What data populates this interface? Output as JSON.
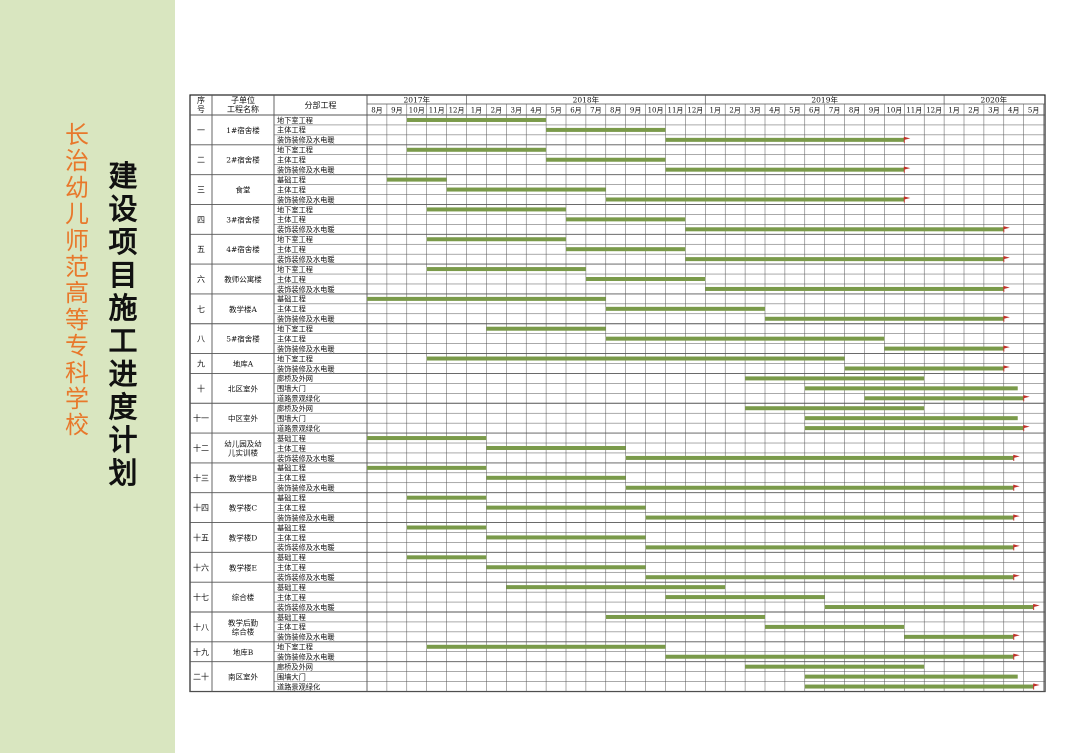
{
  "school_name": "长治幼儿师范高等专科学校",
  "page_title": "建设项目施工进度计划",
  "header": {
    "seq": "序号",
    "unit": "子单位工程名称",
    "sub": "分部工程"
  },
  "years": [
    {
      "label": "2017年",
      "start_month": 0,
      "months": 5
    },
    {
      "label": "2018年",
      "start_month": 5,
      "months": 12
    },
    {
      "label": "2019年",
      "start_month": 17,
      "months": 12
    },
    {
      "label": "2020年",
      "start_month": 29,
      "months": 5
    }
  ],
  "month_labels": [
    "8月",
    "9月",
    "10月",
    "11月",
    "12月",
    "1月",
    "2月",
    "3月",
    "4月",
    "5月",
    "6月",
    "7月",
    "8月",
    "9月",
    "10月",
    "11月",
    "12月",
    "1月",
    "2月",
    "3月",
    "4月",
    "5月",
    "6月",
    "7月",
    "8月",
    "9月",
    "10月",
    "11月",
    "12月",
    "1月",
    "2月",
    "3月",
    "4月",
    "5月"
  ],
  "projects": [
    {
      "seq": "一",
      "name": "1#宿舍楼",
      "tasks": [
        {
          "sub": "地下室工程",
          "start": 2.0,
          "end": 9.0,
          "flag": false
        },
        {
          "sub": "主体工程",
          "start": 9.0,
          "end": 15.0,
          "flag": false
        },
        {
          "sub": "装饰装修及水电暖",
          "start": 15.0,
          "end": 27.0,
          "flag": true
        }
      ]
    },
    {
      "seq": "二",
      "name": "2#宿舍楼",
      "tasks": [
        {
          "sub": "地下室工程",
          "start": 2.0,
          "end": 9.0,
          "flag": false
        },
        {
          "sub": "主体工程",
          "start": 9.0,
          "end": 15.0,
          "flag": false
        },
        {
          "sub": "装饰装修及水电暖",
          "start": 15.0,
          "end": 27.0,
          "flag": true
        }
      ]
    },
    {
      "seq": "三",
      "name": "食堂",
      "tasks": [
        {
          "sub": "基础工程",
          "start": 1.0,
          "end": 4.0,
          "flag": false
        },
        {
          "sub": "主体工程",
          "start": 4.0,
          "end": 12.0,
          "flag": false
        },
        {
          "sub": "装饰装修及水电暖",
          "start": 12.0,
          "end": 27.0,
          "flag": true
        }
      ]
    },
    {
      "seq": "四",
      "name": "3#宿舍楼",
      "tasks": [
        {
          "sub": "地下室工程",
          "start": 3.0,
          "end": 10.0,
          "flag": false
        },
        {
          "sub": "主体工程",
          "start": 10.0,
          "end": 16.0,
          "flag": false
        },
        {
          "sub": "装饰装修及水电暖",
          "start": 16.0,
          "end": 32.0,
          "flag": true
        }
      ]
    },
    {
      "seq": "五",
      "name": "4#宿舍楼",
      "tasks": [
        {
          "sub": "地下室工程",
          "start": 3.0,
          "end": 10.0,
          "flag": false
        },
        {
          "sub": "主体工程",
          "start": 10.0,
          "end": 16.0,
          "flag": false
        },
        {
          "sub": "装饰装修及水电暖",
          "start": 16.0,
          "end": 32.0,
          "flag": true
        }
      ]
    },
    {
      "seq": "六",
      "name": "教师公寓楼",
      "tasks": [
        {
          "sub": "地下室工程",
          "start": 3.0,
          "end": 11.0,
          "flag": false
        },
        {
          "sub": "主体工程",
          "start": 11.0,
          "end": 17.0,
          "flag": false
        },
        {
          "sub": "装饰装修及水电暖",
          "start": 17.0,
          "end": 32.0,
          "flag": true
        }
      ]
    },
    {
      "seq": "七",
      "name": "教学楼A",
      "tasks": [
        {
          "sub": "基础工程",
          "start": 0.0,
          "end": 12.0,
          "flag": false
        },
        {
          "sub": "主体工程",
          "start": 12.0,
          "end": 20.0,
          "flag": false
        },
        {
          "sub": "装饰装修及水电暖",
          "start": 20.0,
          "end": 32.0,
          "flag": true
        }
      ]
    },
    {
      "seq": "八",
      "name": "5#宿舍楼",
      "tasks": [
        {
          "sub": "地下室工程",
          "start": 6.0,
          "end": 12.0,
          "flag": false
        },
        {
          "sub": "主体工程",
          "start": 12.0,
          "end": 26.0,
          "flag": false
        },
        {
          "sub": "装饰装修及水电暖",
          "start": 26.0,
          "end": 32.0,
          "flag": true
        }
      ]
    },
    {
      "seq": "九",
      "name": "地库A",
      "tasks": [
        {
          "sub": "地下室工程",
          "start": 3.0,
          "end": 24.0,
          "flag": false
        },
        {
          "sub": "装饰装修及水电暖",
          "start": 24.0,
          "end": 32.0,
          "flag": true
        }
      ]
    },
    {
      "seq": "十",
      "name": "北区室外",
      "tasks": [
        {
          "sub": "廊桥及外网",
          "start": 19.0,
          "end": 28.0,
          "flag": false
        },
        {
          "sub": "围墙大门",
          "start": 22.0,
          "end": 32.7,
          "flag": false
        },
        {
          "sub": "道路景观绿化",
          "start": 25.0,
          "end": 33.0,
          "flag": true
        }
      ]
    },
    {
      "seq": "十一",
      "name": "中区室外",
      "tasks": [
        {
          "sub": "廊桥及外网",
          "start": 19.0,
          "end": 28.0,
          "flag": false
        },
        {
          "sub": "围墙大门",
          "start": 22.0,
          "end": 32.7,
          "flag": false
        },
        {
          "sub": "道路景观绿化",
          "start": 22.0,
          "end": 33.0,
          "flag": true
        }
      ]
    },
    {
      "seq": "十二",
      "name": "幼儿园及幼儿实训楼",
      "tasks": [
        {
          "sub": "基础工程",
          "start": 0.0,
          "end": 6.0,
          "flag": false
        },
        {
          "sub": "主体工程",
          "start": 6.0,
          "end": 13.0,
          "flag": false
        },
        {
          "sub": "装饰装修及水电暖",
          "start": 13.0,
          "end": 32.5,
          "flag": true
        }
      ]
    },
    {
      "seq": "十三",
      "name": "教学楼B",
      "tasks": [
        {
          "sub": "基础工程",
          "start": 0.0,
          "end": 6.0,
          "flag": false
        },
        {
          "sub": "主体工程",
          "start": 6.0,
          "end": 13.0,
          "flag": false
        },
        {
          "sub": "装饰装修及水电暖",
          "start": 13.0,
          "end": 32.5,
          "flag": true
        }
      ]
    },
    {
      "seq": "十四",
      "name": "教学楼C",
      "tasks": [
        {
          "sub": "基础工程",
          "start": 2.0,
          "end": 6.0,
          "flag": false
        },
        {
          "sub": "主体工程",
          "start": 6.0,
          "end": 14.0,
          "flag": false
        },
        {
          "sub": "装饰装修及水电暖",
          "start": 14.0,
          "end": 32.5,
          "flag": true
        }
      ]
    },
    {
      "seq": "十五",
      "name": "教学楼D",
      "tasks": [
        {
          "sub": "基础工程",
          "start": 2.0,
          "end": 6.0,
          "flag": false
        },
        {
          "sub": "主体工程",
          "start": 6.0,
          "end": 14.0,
          "flag": false
        },
        {
          "sub": "装饰装修及水电暖",
          "start": 14.0,
          "end": 32.5,
          "flag": true
        }
      ]
    },
    {
      "seq": "十六",
      "name": "教学楼E",
      "tasks": [
        {
          "sub": "基础工程",
          "start": 2.0,
          "end": 6.0,
          "flag": false
        },
        {
          "sub": "主体工程",
          "start": 6.0,
          "end": 14.0,
          "flag": false
        },
        {
          "sub": "装饰装修及水电暖",
          "start": 14.0,
          "end": 32.5,
          "flag": true
        }
      ]
    },
    {
      "seq": "十七",
      "name": "综合楼",
      "tasks": [
        {
          "sub": "基础工程",
          "start": 7.0,
          "end": 18.0,
          "flag": false
        },
        {
          "sub": "主体工程",
          "start": 15.0,
          "end": 23.0,
          "flag": false
        },
        {
          "sub": "装饰装修及水电暖",
          "start": 23.0,
          "end": 33.5,
          "flag": true
        }
      ]
    },
    {
      "seq": "十八",
      "name": "教学后勤综合楼",
      "tasks": [
        {
          "sub": "基础工程",
          "start": 12.0,
          "end": 20.0,
          "flag": false
        },
        {
          "sub": "主体工程",
          "start": 20.0,
          "end": 27.0,
          "flag": false
        },
        {
          "sub": "装饰装修及水电暖",
          "start": 27.0,
          "end": 32.5,
          "flag": true
        }
      ]
    },
    {
      "seq": "十九",
      "name": "地库B",
      "tasks": [
        {
          "sub": "地下室工程",
          "start": 3.0,
          "end": 15.0,
          "flag": false
        },
        {
          "sub": "装饰装修及水电暖",
          "start": 15.0,
          "end": 32.5,
          "flag": true
        }
      ]
    },
    {
      "seq": "二十",
      "name": "南区室外",
      "tasks": [
        {
          "sub": "廊桥及外网",
          "start": 19.0,
          "end": 28.0,
          "flag": false
        },
        {
          "sub": "围墙大门",
          "start": 22.0,
          "end": 32.7,
          "flag": false
        },
        {
          "sub": "道路景观绿化",
          "start": 22.0,
          "end": 33.5,
          "flag": true
        }
      ]
    }
  ],
  "colors": {
    "bar": "#7a9a4a",
    "flag": "#c0312b",
    "sidebar": "#d9e6c0",
    "school_text": "#e8782b",
    "grid": "#555555"
  }
}
